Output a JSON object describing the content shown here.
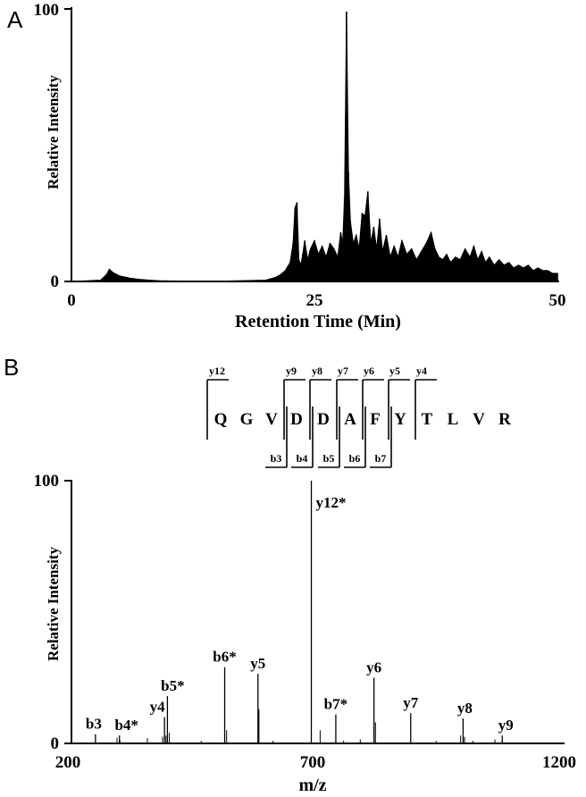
{
  "chart_data": [
    {
      "type": "line",
      "panel_label": "A",
      "xlabel": "Retention Time (Min)",
      "ylabel": "Relative Intensity",
      "xlim": [
        0,
        50
      ],
      "ylim": [
        0,
        100
      ],
      "x_ticks": [
        "0",
        "25",
        "50"
      ],
      "y_ticks": [
        "0",
        "100"
      ],
      "grid": false,
      "x": [
        0,
        3.0,
        3.6,
        3.9,
        4.3,
        5,
        6,
        7,
        8,
        9,
        10,
        15,
        20,
        21,
        21.5,
        22,
        22.5,
        22.8,
        23.0,
        23.2,
        23.4,
        23.6,
        23.8,
        24.0,
        24.3,
        24.6,
        25.0,
        25.4,
        25.8,
        26.2,
        26.6,
        27.0,
        27.4,
        27.7,
        27.9,
        28.1,
        28.3,
        28.5,
        28.7,
        29.0,
        29.3,
        29.6,
        29.9,
        30.2,
        30.5,
        30.8,
        31.1,
        31.4,
        31.7,
        32.0,
        32.4,
        32.8,
        33.2,
        33.6,
        34.0,
        34.5,
        35.0,
        35.5,
        36.0,
        36.5,
        37.0,
        37.4,
        37.8,
        38.2,
        38.6,
        39.0,
        39.5,
        40.0,
        40.5,
        41.0,
        41.4,
        41.8,
        42.2,
        42.6,
        43.0,
        43.5,
        44.0,
        44.5,
        45.0,
        45.5,
        46.0,
        46.5,
        47.0,
        47.5,
        48.0,
        48.5,
        49.0,
        49.5,
        50.0
      ],
      "y": [
        0,
        0.5,
        2.5,
        4.5,
        3.2,
        2,
        1.2,
        0.8,
        0.5,
        0.3,
        0.2,
        0.1,
        0.5,
        1.5,
        2.5,
        4,
        7,
        14,
        27,
        29,
        8,
        6,
        10,
        15,
        8,
        12,
        15,
        10,
        13,
        9,
        14,
        12,
        9,
        18,
        14,
        31,
        99,
        40,
        22,
        14,
        17,
        12,
        25,
        24,
        33,
        14,
        20,
        12,
        23,
        11,
        17,
        9,
        13,
        9,
        15,
        10,
        12,
        8,
        11,
        14,
        18,
        12,
        9,
        8,
        10,
        7,
        9,
        8,
        12,
        9,
        13,
        8,
        11,
        7,
        9,
        6,
        8,
        6,
        7,
        5,
        6,
        5,
        6,
        4,
        5,
        4,
        4,
        3,
        3
      ]
    },
    {
      "type": "bar",
      "panel_label": "B",
      "xlabel": "m/z",
      "ylabel": "Relative Intensity",
      "xlim": [
        200,
        1200
      ],
      "ylim": [
        0,
        100
      ],
      "x_ticks": [
        "200",
        "700",
        "1200"
      ],
      "y_ticks": [
        "0",
        "100"
      ],
      "grid": false,
      "peaks": [
        {
          "mz": 249,
          "intensity": 3.5,
          "label": "b3"
        },
        {
          "mz": 293,
          "intensity": 2.2
        },
        {
          "mz": 299,
          "intensity": 1.2
        },
        {
          "mz": 298,
          "intensity": 3,
          "label": "b4*"
        },
        {
          "mz": 355,
          "intensity": 2
        },
        {
          "mz": 386,
          "intensity": 2.5
        },
        {
          "mz": 390,
          "intensity": 10,
          "label": "y4"
        },
        {
          "mz": 393,
          "intensity": 3
        },
        {
          "mz": 396,
          "intensity": 18,
          "label": "b5*"
        },
        {
          "mz": 400,
          "intensity": 4
        },
        {
          "mz": 465,
          "intensity": 1
        },
        {
          "mz": 513,
          "intensity": 29,
          "label": "b6*"
        },
        {
          "mz": 517,
          "intensity": 5
        },
        {
          "mz": 581,
          "intensity": 26.5,
          "label": "y5"
        },
        {
          "mz": 583,
          "intensity": 13
        },
        {
          "mz": 612,
          "intensity": 1
        },
        {
          "mz": 690,
          "intensity": 100,
          "label": "y12*"
        },
        {
          "mz": 708,
          "intensity": 5
        },
        {
          "mz": 740,
          "intensity": 11,
          "label": "b7*"
        },
        {
          "mz": 756,
          "intensity": 1
        },
        {
          "mz": 790,
          "intensity": 1.5
        },
        {
          "mz": 818,
          "intensity": 25,
          "label": "y6"
        },
        {
          "mz": 821,
          "intensity": 8
        },
        {
          "mz": 893,
          "intensity": 11.5,
          "label": "y7"
        },
        {
          "mz": 945,
          "intensity": 1
        },
        {
          "mz": 1000,
          "intensity": 9.5,
          "label": "y8"
        },
        {
          "mz": 995,
          "intensity": 3
        },
        {
          "mz": 1003,
          "intensity": 2.5
        },
        {
          "mz": 1020,
          "intensity": 1
        },
        {
          "mz": 1065,
          "intensity": 1.5
        },
        {
          "mz": 1080,
          "intensity": 3,
          "label": "y9"
        }
      ],
      "sequence": [
        "Q",
        "G",
        "V",
        "D",
        "D",
        "A",
        "F",
        "Y",
        "T",
        "L",
        "V",
        "R"
      ],
      "y_ions": [
        "y12",
        "y9",
        "y8",
        "y7",
        "y6",
        "y5",
        "y4"
      ],
      "b_ions": [
        "b3",
        "b4",
        "b5",
        "b6",
        "b7"
      ]
    }
  ]
}
